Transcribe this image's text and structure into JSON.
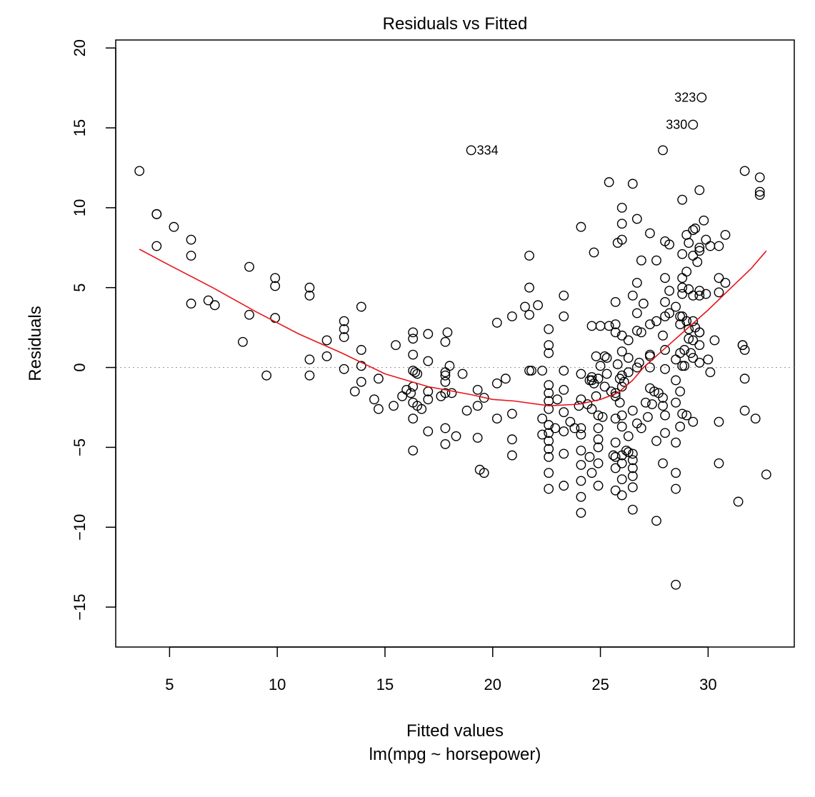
{
  "chart_data": {
    "type": "scatter",
    "title": "Residuals vs Fitted",
    "xlabel": "Fitted values",
    "xlabel_sub": "lm(mpg ~ horsepower)",
    "ylabel": "Residuals",
    "xlim": [
      2.5,
      34.0
    ],
    "ylim": [
      -17.5,
      20.5
    ],
    "xticks": [
      5,
      10,
      15,
      20,
      25,
      30
    ],
    "yticks": [
      -15,
      -10,
      -5,
      0,
      5,
      10,
      15,
      20
    ],
    "xtick_labels": [
      "5",
      "10",
      "15",
      "20",
      "25",
      "30"
    ],
    "ytick_labels": [
      "−15",
      "−10",
      "−5",
      "0",
      "5",
      "10",
      "15",
      "20"
    ],
    "zero_line": true,
    "point_color": "#000000",
    "smooth_color": "#e8141a",
    "labeled_points": [
      {
        "label": "323",
        "x": 29.7,
        "y": 16.9
      },
      {
        "label": "330",
        "x": 29.3,
        "y": 15.2
      },
      {
        "label": "334",
        "x": 19.0,
        "y": 13.6
      }
    ],
    "points": [
      [
        3.6,
        12.3
      ],
      [
        4.4,
        9.6
      ],
      [
        4.4,
        9.6
      ],
      [
        4.4,
        7.6
      ],
      [
        5.2,
        8.8
      ],
      [
        6.0,
        8.0
      ],
      [
        6.0,
        7.0
      ],
      [
        6.0,
        4.0
      ],
      [
        6.8,
        4.2
      ],
      [
        7.1,
        3.9
      ],
      [
        8.4,
        1.6
      ],
      [
        8.7,
        6.3
      ],
      [
        8.7,
        3.3
      ],
      [
        9.5,
        -0.5
      ],
      [
        9.9,
        5.6
      ],
      [
        9.9,
        5.1
      ],
      [
        9.9,
        3.1
      ],
      [
        11.5,
        5.0
      ],
      [
        11.5,
        4.5
      ],
      [
        11.5,
        0.5
      ],
      [
        11.5,
        -0.5
      ],
      [
        12.3,
        1.7
      ],
      [
        12.3,
        0.7
      ],
      [
        13.1,
        2.9
      ],
      [
        13.1,
        2.4
      ],
      [
        13.1,
        1.9
      ],
      [
        13.1,
        -0.1
      ],
      [
        13.6,
        -1.5
      ],
      [
        13.9,
        3.8
      ],
      [
        13.9,
        1.1
      ],
      [
        13.9,
        0.1
      ],
      [
        13.9,
        -0.9
      ],
      [
        14.5,
        -2.0
      ],
      [
        14.7,
        -2.6
      ],
      [
        14.7,
        -0.7
      ],
      [
        15.4,
        -2.4
      ],
      [
        15.5,
        1.4
      ],
      [
        15.8,
        -1.8
      ],
      [
        16.0,
        -1.4
      ],
      [
        16.2,
        -1.6
      ],
      [
        16.3,
        2.2
      ],
      [
        16.3,
        1.8
      ],
      [
        16.3,
        0.8
      ],
      [
        16.3,
        -0.2
      ],
      [
        16.3,
        -1.2
      ],
      [
        16.3,
        -2.2
      ],
      [
        16.3,
        -3.2
      ],
      [
        16.3,
        -5.2
      ],
      [
        16.4,
        -0.3
      ],
      [
        16.5,
        -0.4
      ],
      [
        16.5,
        -2.4
      ],
      [
        16.7,
        -2.6
      ],
      [
        17.0,
        2.1
      ],
      [
        17.0,
        0.4
      ],
      [
        17.0,
        -1.5
      ],
      [
        17.0,
        -2.0
      ],
      [
        17.0,
        -4.0
      ],
      [
        17.6,
        -1.8
      ],
      [
        17.8,
        1.6
      ],
      [
        17.8,
        -0.3
      ],
      [
        17.8,
        -0.5
      ],
      [
        17.8,
        -0.9
      ],
      [
        17.8,
        -1.6
      ],
      [
        17.8,
        -3.8
      ],
      [
        17.8,
        -4.8
      ],
      [
        17.9,
        2.2
      ],
      [
        18.0,
        0.1
      ],
      [
        18.1,
        -1.6
      ],
      [
        18.3,
        -4.3
      ],
      [
        18.6,
        -0.4
      ],
      [
        18.8,
        -2.7
      ],
      [
        19.3,
        -1.4
      ],
      [
        19.3,
        -2.4
      ],
      [
        19.3,
        -4.4
      ],
      [
        19.4,
        -6.4
      ],
      [
        19.6,
        -6.6
      ],
      [
        19.6,
        -1.9
      ],
      [
        20.2,
        2.8
      ],
      [
        20.2,
        -1.0
      ],
      [
        20.2,
        -3.2
      ],
      [
        20.6,
        -0.7
      ],
      [
        20.9,
        3.2
      ],
      [
        20.9,
        -2.9
      ],
      [
        20.9,
        -4.5
      ],
      [
        20.9,
        -5.5
      ],
      [
        21.5,
        3.8
      ],
      [
        21.7,
        7.0
      ],
      [
        21.7,
        5.0
      ],
      [
        21.7,
        3.3
      ],
      [
        21.7,
        -0.2
      ],
      [
        21.8,
        -0.2
      ],
      [
        22.1,
        3.9
      ],
      [
        22.3,
        -0.2
      ],
      [
        22.3,
        -3.2
      ],
      [
        22.3,
        -4.2
      ],
      [
        22.6,
        2.4
      ],
      [
        22.6,
        1.4
      ],
      [
        22.6,
        0.9
      ],
      [
        22.6,
        -1.1
      ],
      [
        22.6,
        -1.6
      ],
      [
        22.6,
        -2.1
      ],
      [
        22.6,
        -2.6
      ],
      [
        22.6,
        -3.6
      ],
      [
        22.6,
        -4.1
      ],
      [
        22.6,
        -4.6
      ],
      [
        22.6,
        -5.1
      ],
      [
        22.6,
        -5.6
      ],
      [
        22.6,
        -6.6
      ],
      [
        22.6,
        -7.6
      ],
      [
        22.9,
        -3.8
      ],
      [
        23.0,
        -2.0
      ],
      [
        23.3,
        4.5
      ],
      [
        23.3,
        3.2
      ],
      [
        23.3,
        -0.2
      ],
      [
        23.3,
        -1.4
      ],
      [
        23.3,
        -2.8
      ],
      [
        23.3,
        -4.0
      ],
      [
        23.3,
        -5.4
      ],
      [
        23.3,
        -7.4
      ],
      [
        23.6,
        -3.4
      ],
      [
        23.8,
        -3.8
      ],
      [
        24.0,
        -2.4
      ],
      [
        24.1,
        8.8
      ],
      [
        24.1,
        -0.4
      ],
      [
        24.1,
        -2.0
      ],
      [
        24.1,
        -3.8
      ],
      [
        24.1,
        -4.2
      ],
      [
        24.1,
        -5.2
      ],
      [
        24.1,
        -6.1
      ],
      [
        24.1,
        -7.1
      ],
      [
        24.1,
        -8.1
      ],
      [
        24.1,
        -9.1
      ],
      [
        24.4,
        -2.3
      ],
      [
        24.5,
        -0.8
      ],
      [
        24.5,
        -5.6
      ],
      [
        24.6,
        2.6
      ],
      [
        24.6,
        -0.6
      ],
      [
        24.6,
        -0.8
      ],
      [
        24.6,
        -2.6
      ],
      [
        24.6,
        -6.6
      ],
      [
        24.7,
        -1.0
      ],
      [
        24.7,
        7.2
      ],
      [
        24.8,
        0.7
      ],
      [
        24.8,
        -1.8
      ],
      [
        24.9,
        -0.7
      ],
      [
        24.9,
        -3.0
      ],
      [
        24.9,
        -3.8
      ],
      [
        24.9,
        -4.5
      ],
      [
        24.9,
        -5.0
      ],
      [
        24.9,
        -6.0
      ],
      [
        24.9,
        -7.4
      ],
      [
        25.0,
        2.6
      ],
      [
        25.0,
        0.1
      ],
      [
        25.1,
        -3.1
      ],
      [
        25.2,
        -1.2
      ],
      [
        25.2,
        0.7
      ],
      [
        25.3,
        -0.4
      ],
      [
        25.3,
        0.6
      ],
      [
        25.4,
        11.6
      ],
      [
        25.4,
        2.6
      ],
      [
        25.5,
        -1.5
      ],
      [
        25.6,
        -5.5
      ],
      [
        25.7,
        4.1
      ],
      [
        25.7,
        2.7
      ],
      [
        25.7,
        2.2
      ],
      [
        25.7,
        -1.6
      ],
      [
        25.7,
        -1.8
      ],
      [
        25.7,
        -3.2
      ],
      [
        25.7,
        -4.7
      ],
      [
        25.7,
        -5.6
      ],
      [
        25.7,
        -6.3
      ],
      [
        25.7,
        -7.7
      ],
      [
        25.8,
        7.8
      ],
      [
        25.8,
        0.2
      ],
      [
        25.9,
        -0.7
      ],
      [
        25.9,
        -2.2
      ],
      [
        26.0,
        10.0
      ],
      [
        26.0,
        9.0
      ],
      [
        26.0,
        8.0
      ],
      [
        26.0,
        2.0
      ],
      [
        26.0,
        1.0
      ],
      [
        26.0,
        -0.5
      ],
      [
        26.0,
        -1.2
      ],
      [
        26.0,
        -3.0
      ],
      [
        26.0,
        -3.7
      ],
      [
        26.0,
        -5.5
      ],
      [
        26.0,
        -6.0
      ],
      [
        26.0,
        -7.0
      ],
      [
        26.0,
        -8.0
      ],
      [
        26.1,
        -0.9
      ],
      [
        26.2,
        -5.2
      ],
      [
        26.3,
        1.7
      ],
      [
        26.3,
        0.6
      ],
      [
        26.3,
        -0.3
      ],
      [
        26.3,
        -4.3
      ],
      [
        26.3,
        -5.3
      ],
      [
        26.5,
        11.5
      ],
      [
        26.5,
        4.5
      ],
      [
        26.5,
        -2.7
      ],
      [
        26.5,
        -5.4
      ],
      [
        26.5,
        -5.8
      ],
      [
        26.5,
        -6.3
      ],
      [
        26.5,
        -6.8
      ],
      [
        26.5,
        -7.5
      ],
      [
        26.5,
        -8.9
      ],
      [
        26.7,
        9.3
      ],
      [
        26.7,
        5.3
      ],
      [
        26.7,
        3.4
      ],
      [
        26.7,
        2.3
      ],
      [
        26.7,
        -3.5
      ],
      [
        26.7,
        0.0
      ],
      [
        26.8,
        0.3
      ],
      [
        26.9,
        6.7
      ],
      [
        26.9,
        2.2
      ],
      [
        26.9,
        -3.8
      ],
      [
        27.0,
        4.0
      ],
      [
        27.1,
        -2.2
      ],
      [
        27.2,
        -3.1
      ],
      [
        27.3,
        8.4
      ],
      [
        27.3,
        2.7
      ],
      [
        27.3,
        0.8
      ],
      [
        27.3,
        0.7
      ],
      [
        27.3,
        0.0
      ],
      [
        27.3,
        -1.3
      ],
      [
        27.4,
        -2.3
      ],
      [
        27.5,
        -1.5
      ],
      [
        27.6,
        6.7
      ],
      [
        27.6,
        2.9
      ],
      [
        27.6,
        -4.6
      ],
      [
        27.6,
        -9.6
      ],
      [
        27.7,
        -1.6
      ],
      [
        27.9,
        13.6
      ],
      [
        27.9,
        2.0
      ],
      [
        27.9,
        -1.9
      ],
      [
        27.9,
        -2.4
      ],
      [
        27.9,
        -6.0
      ],
      [
        28.0,
        7.9
      ],
      [
        28.0,
        5.6
      ],
      [
        28.0,
        4.1
      ],
      [
        28.0,
        3.2
      ],
      [
        28.0,
        1.1
      ],
      [
        28.0,
        -0.1
      ],
      [
        28.0,
        -3.0
      ],
      [
        28.0,
        -4.1
      ],
      [
        28.2,
        7.7
      ],
      [
        28.2,
        4.8
      ],
      [
        28.2,
        3.4
      ],
      [
        28.5,
        3.8
      ],
      [
        28.5,
        0.5
      ],
      [
        28.5,
        -0.8
      ],
      [
        28.5,
        -2.2
      ],
      [
        28.5,
        -4.7
      ],
      [
        28.5,
        -6.6
      ],
      [
        28.5,
        -7.6
      ],
      [
        28.5,
        -13.6
      ],
      [
        28.7,
        3.2
      ],
      [
        28.7,
        2.7
      ],
      [
        28.7,
        0.9
      ],
      [
        28.7,
        -1.5
      ],
      [
        28.7,
        -3.7
      ],
      [
        28.8,
        10.5
      ],
      [
        28.8,
        7.1
      ],
      [
        28.8,
        5.6
      ],
      [
        28.8,
        5.0
      ],
      [
        28.8,
        4.6
      ],
      [
        28.8,
        3.2
      ],
      [
        28.8,
        0.1
      ],
      [
        28.8,
        -2.9
      ],
      [
        28.9,
        1.1
      ],
      [
        28.9,
        0.1
      ],
      [
        29.0,
        8.3
      ],
      [
        29.0,
        6.0
      ],
      [
        29.0,
        2.9
      ],
      [
        29.0,
        -3.0
      ],
      [
        29.1,
        7.8
      ],
      [
        29.1,
        4.9
      ],
      [
        29.1,
        2.4
      ],
      [
        29.1,
        1.8
      ],
      [
        29.2,
        0.9
      ],
      [
        29.3,
        8.6
      ],
      [
        29.3,
        7.0
      ],
      [
        29.3,
        4.5
      ],
      [
        29.3,
        2.9
      ],
      [
        29.3,
        1.7
      ],
      [
        29.3,
        0.6
      ],
      [
        29.3,
        -3.4
      ],
      [
        29.4,
        8.7
      ],
      [
        29.4,
        2.5
      ],
      [
        29.5,
        6.6
      ],
      [
        29.6,
        11.1
      ],
      [
        29.6,
        7.5
      ],
      [
        29.6,
        7.3
      ],
      [
        29.6,
        4.8
      ],
      [
        29.6,
        4.5
      ],
      [
        29.6,
        2.2
      ],
      [
        29.6,
        2.2
      ],
      [
        29.6,
        1.4
      ],
      [
        29.6,
        0.3
      ],
      [
        29.8,
        9.2
      ],
      [
        29.9,
        8.0
      ],
      [
        29.9,
        4.6
      ],
      [
        30.0,
        0.5
      ],
      [
        30.1,
        7.6
      ],
      [
        30.1,
        -0.3
      ],
      [
        30.3,
        1.7
      ],
      [
        30.5,
        7.6
      ],
      [
        30.5,
        5.6
      ],
      [
        30.5,
        4.7
      ],
      [
        30.5,
        -3.4
      ],
      [
        30.5,
        -6.0
      ],
      [
        30.8,
        8.3
      ],
      [
        30.8,
        5.3
      ],
      [
        31.4,
        -8.4
      ],
      [
        31.6,
        1.4
      ],
      [
        31.6,
        1.4
      ],
      [
        31.7,
        12.3
      ],
      [
        31.7,
        1.1
      ],
      [
        31.7,
        -0.7
      ],
      [
        31.7,
        -2.7
      ],
      [
        32.2,
        -3.2
      ],
      [
        32.4,
        11.9
      ],
      [
        32.4,
        11.0
      ],
      [
        32.4,
        10.8
      ],
      [
        32.7,
        -6.7
      ]
    ],
    "smooth": [
      [
        3.6,
        7.4
      ],
      [
        5.0,
        6.4
      ],
      [
        7.0,
        5.0
      ],
      [
        9.0,
        3.5
      ],
      [
        11.0,
        2.1
      ],
      [
        13.0,
        0.9
      ],
      [
        15.0,
        -0.4
      ],
      [
        17.0,
        -1.2
      ],
      [
        19.0,
        -1.7
      ],
      [
        20.0,
        -2.0
      ],
      [
        21.0,
        -2.1
      ],
      [
        22.6,
        -2.4
      ],
      [
        24.0,
        -2.3
      ],
      [
        25.0,
        -2.0
      ],
      [
        25.8,
        -1.6
      ],
      [
        26.5,
        -0.8
      ],
      [
        27.0,
        0.0
      ],
      [
        28.0,
        1.2
      ],
      [
        29.0,
        2.4
      ],
      [
        30.0,
        3.6
      ],
      [
        31.0,
        4.9
      ],
      [
        32.0,
        6.2
      ],
      [
        32.7,
        7.3
      ]
    ]
  }
}
